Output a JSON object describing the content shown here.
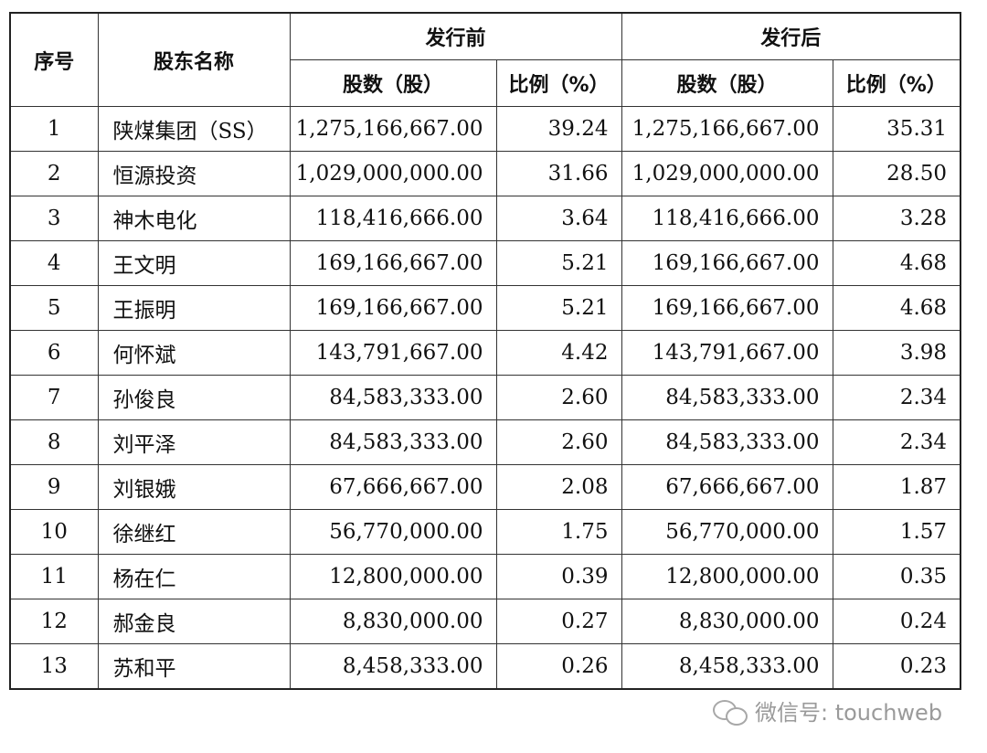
{
  "headers": {
    "index": "序号",
    "name": "股东名称",
    "before": "发行前",
    "after": "发行后",
    "shares": "股数（股）",
    "ratio": "比例（%）"
  },
  "rows": [
    {
      "index": "1",
      "name": "陕煤集团（SS）",
      "before_shares": "1,275,166,667.00",
      "before_ratio": "39.24",
      "after_shares": "1,275,166,667.00",
      "after_ratio": "35.31"
    },
    {
      "index": "2",
      "name": "恒源投资",
      "before_shares": "1,029,000,000.00",
      "before_ratio": "31.66",
      "after_shares": "1,029,000,000.00",
      "after_ratio": "28.50"
    },
    {
      "index": "3",
      "name": "神木电化",
      "before_shares": "118,416,666.00",
      "before_ratio": "3.64",
      "after_shares": "118,416,666.00",
      "after_ratio": "3.28"
    },
    {
      "index": "4",
      "name": "王文明",
      "before_shares": "169,166,667.00",
      "before_ratio": "5.21",
      "after_shares": "169,166,667.00",
      "after_ratio": "4.68"
    },
    {
      "index": "5",
      "name": "王振明",
      "before_shares": "169,166,667.00",
      "before_ratio": "5.21",
      "after_shares": "169,166,667.00",
      "after_ratio": "4.68"
    },
    {
      "index": "6",
      "name": "何怀斌",
      "before_shares": "143,791,667.00",
      "before_ratio": "4.42",
      "after_shares": "143,791,667.00",
      "after_ratio": "3.98"
    },
    {
      "index": "7",
      "name": "孙俊良",
      "before_shares": "84,583,333.00",
      "before_ratio": "2.60",
      "after_shares": "84,583,333.00",
      "after_ratio": "2.34"
    },
    {
      "index": "8",
      "name": "刘平泽",
      "before_shares": "84,583,333.00",
      "before_ratio": "2.60",
      "after_shares": "84,583,333.00",
      "after_ratio": "2.34"
    },
    {
      "index": "9",
      "name": "刘银娥",
      "before_shares": "67,666,667.00",
      "before_ratio": "2.08",
      "after_shares": "67,666,667.00",
      "after_ratio": "1.87"
    },
    {
      "index": "10",
      "name": "徐继红",
      "before_shares": "56,770,000.00",
      "before_ratio": "1.75",
      "after_shares": "56,770,000.00",
      "after_ratio": "1.57"
    },
    {
      "index": "11",
      "name": "杨在仁",
      "before_shares": "12,800,000.00",
      "before_ratio": "0.39",
      "after_shares": "12,800,000.00",
      "after_ratio": "0.35"
    },
    {
      "index": "12",
      "name": "郝金良",
      "before_shares": "8,830,000.00",
      "before_ratio": "0.27",
      "after_shares": "8,830,000.00",
      "after_ratio": "0.24"
    },
    {
      "index": "13",
      "name": "苏和平",
      "before_shares": "8,458,333.00",
      "before_ratio": "0.26",
      "after_shares": "8,458,333.00",
      "after_ratio": "0.23"
    }
  ],
  "watermark": {
    "icon": "wechat-icon",
    "text": "微信号: touchweb"
  }
}
